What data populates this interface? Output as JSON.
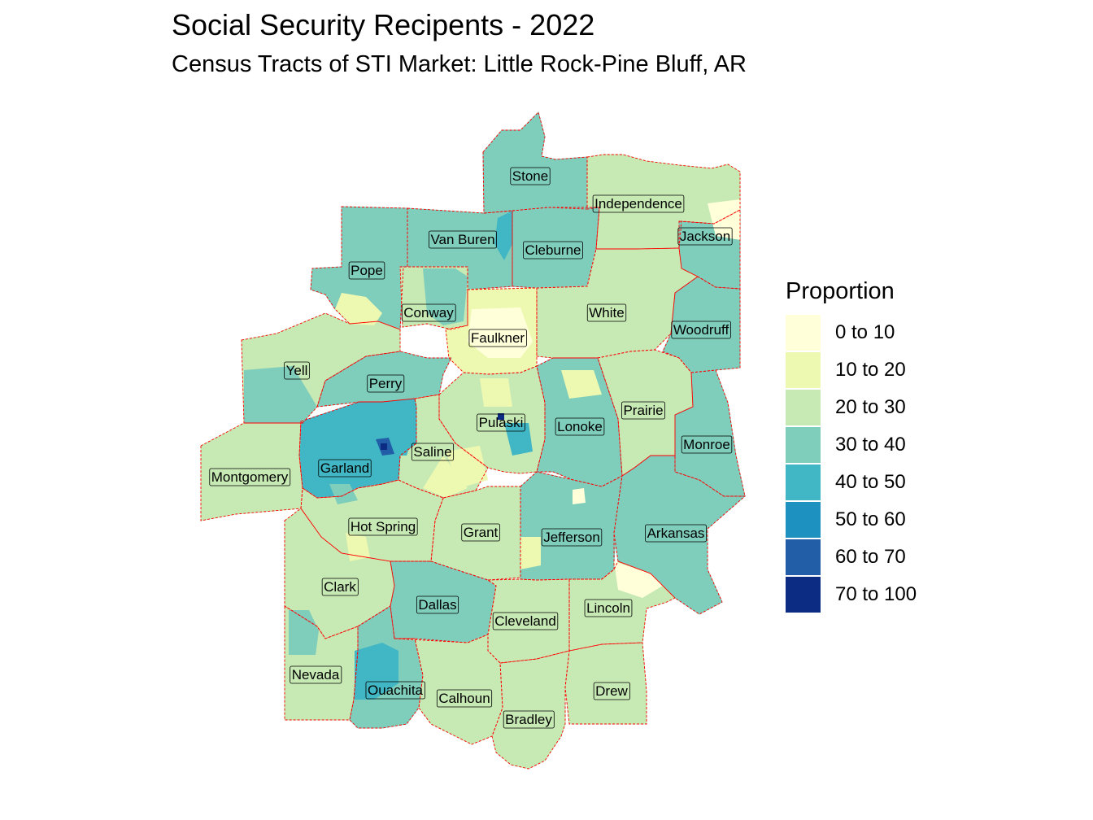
{
  "title": "Social Security Recipents - 2022",
  "subtitle": "Census Tracts of STI Market: Little Rock-Pine Bluff, AR",
  "legend": {
    "title": "Proportion",
    "items": [
      {
        "label": "0 to 10",
        "color": "#ffffd9"
      },
      {
        "label": "10 to 20",
        "color": "#edf8b1"
      },
      {
        "label": "20 to 30",
        "color": "#c7e9b4"
      },
      {
        "label": "30 to 40",
        "color": "#7fcdbb"
      },
      {
        "label": "40 to 50",
        "color": "#41b6c4"
      },
      {
        "label": "50 to 60",
        "color": "#1d91c0"
      },
      {
        "label": "60 to 70",
        "color": "#225ea8"
      },
      {
        "label": "70 to 100",
        "color": "#0c2c84"
      }
    ]
  },
  "colors": {
    "county_border": "#ff0000",
    "label_border": "#000000",
    "label_fill": "#ffffff"
  },
  "counties": [
    {
      "name": "Stone",
      "class": "30 to 40"
    },
    {
      "name": "Independence",
      "class": "20 to 30"
    },
    {
      "name": "Jackson",
      "class": "30 to 40"
    },
    {
      "name": "Van Buren",
      "class": "30 to 40"
    },
    {
      "name": "Cleburne",
      "class": "30 to 40"
    },
    {
      "name": "Pope",
      "class": "30 to 40"
    },
    {
      "name": "Conway",
      "class": "20 to 30"
    },
    {
      "name": "White",
      "class": "20 to 30"
    },
    {
      "name": "Woodruff",
      "class": "30 to 40"
    },
    {
      "name": "Faulkner",
      "class": "10 to 20"
    },
    {
      "name": "Yell",
      "class": "20 to 30"
    },
    {
      "name": "Perry",
      "class": "30 to 40"
    },
    {
      "name": "Prairie",
      "class": "20 to 30"
    },
    {
      "name": "Pulaski",
      "class": "20 to 30"
    },
    {
      "name": "Lonoke",
      "class": "30 to 40"
    },
    {
      "name": "Monroe",
      "class": "30 to 40"
    },
    {
      "name": "Saline",
      "class": "20 to 30"
    },
    {
      "name": "Garland",
      "class": "40 to 50"
    },
    {
      "name": "Montgomery",
      "class": "20 to 30"
    },
    {
      "name": "Hot Spring",
      "class": "20 to 30"
    },
    {
      "name": "Grant",
      "class": "20 to 30"
    },
    {
      "name": "Jefferson",
      "class": "30 to 40"
    },
    {
      "name": "Arkansas",
      "class": "30 to 40"
    },
    {
      "name": "Clark",
      "class": "20 to 30"
    },
    {
      "name": "Dallas",
      "class": "30 to 40"
    },
    {
      "name": "Cleveland",
      "class": "20 to 30"
    },
    {
      "name": "Lincoln",
      "class": "20 to 30"
    },
    {
      "name": "Nevada",
      "class": "20 to 30"
    },
    {
      "name": "Ouachita",
      "class": "30 to 40"
    },
    {
      "name": "Calhoun",
      "class": "20 to 30"
    },
    {
      "name": "Bradley",
      "class": "20 to 30"
    },
    {
      "name": "Drew",
      "class": "20 to 30"
    }
  ]
}
